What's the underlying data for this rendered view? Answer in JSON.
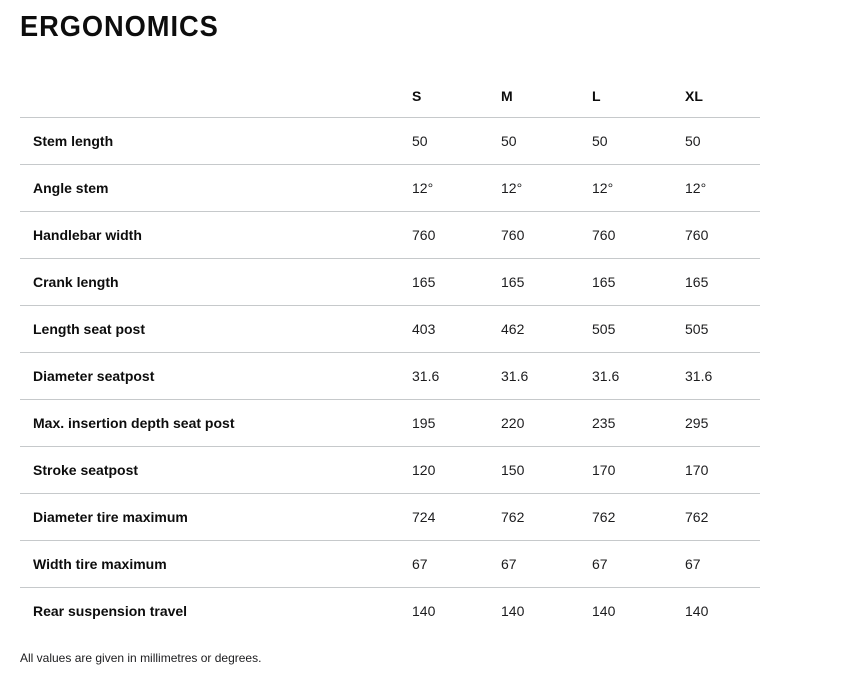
{
  "page": {
    "title": "ERGONOMICS",
    "footnote": "All values are given in millimetres or degrees."
  },
  "table": {
    "columns": [
      "S",
      "M",
      "L",
      "XL"
    ],
    "rows": [
      {
        "label": "Stem length",
        "values": [
          "50",
          "50",
          "50",
          "50"
        ]
      },
      {
        "label": "Angle stem",
        "values": [
          "12°",
          "12°",
          "12°",
          "12°"
        ]
      },
      {
        "label": "Handlebar width",
        "values": [
          "760",
          "760",
          "760",
          "760"
        ]
      },
      {
        "label": "Crank length",
        "values": [
          "165",
          "165",
          "165",
          "165"
        ]
      },
      {
        "label": "Length seat post",
        "values": [
          "403",
          "462",
          "505",
          "505"
        ]
      },
      {
        "label": "Diameter seatpost",
        "values": [
          "31.6",
          "31.6",
          "31.6",
          "31.6"
        ]
      },
      {
        "label": "Max. insertion depth seat post",
        "values": [
          "195",
          "220",
          "235",
          "295"
        ]
      },
      {
        "label": "Stroke seatpost",
        "values": [
          "120",
          "150",
          "170",
          "170"
        ]
      },
      {
        "label": "Diameter tire maximum",
        "values": [
          "724",
          "762",
          "762",
          "762"
        ]
      },
      {
        "label": "Width tire maximum",
        "values": [
          "67",
          "67",
          "67",
          "67"
        ]
      },
      {
        "label": "Rear suspension travel",
        "values": [
          "140",
          "140",
          "140",
          "140"
        ]
      }
    ]
  },
  "colors": {
    "divider": "#c6c9cb",
    "text": "#111111",
    "background": "#ffffff"
  }
}
